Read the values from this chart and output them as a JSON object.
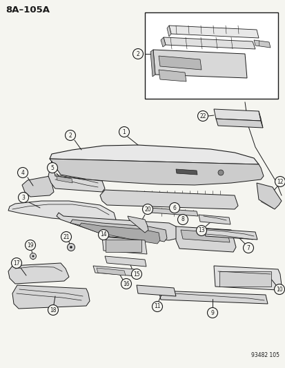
{
  "title": "8A–105A",
  "diagram_number": "93482 105",
  "bg_color": "#f5f5f0",
  "line_color": "#1a1a1a",
  "fig_width": 4.14,
  "fig_height": 5.33,
  "dpi": 100
}
